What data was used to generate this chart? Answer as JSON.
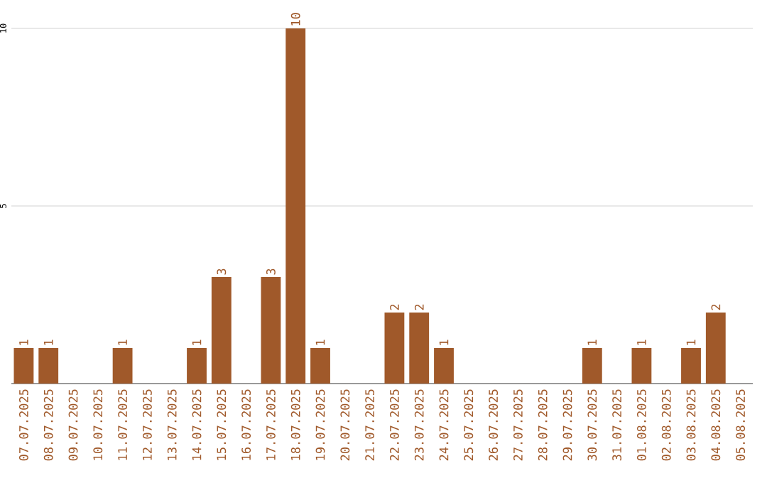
{
  "chart_data": {
    "type": "bar",
    "categories": [
      "07.07.2025",
      "08.07.2025",
      "09.07.2025",
      "10.07.2025",
      "11.07.2025",
      "12.07.2025",
      "13.07.2025",
      "14.07.2025",
      "15.07.2025",
      "16.07.2025",
      "17.07.2025",
      "18.07.2025",
      "19.07.2025",
      "20.07.2025",
      "21.07.2025",
      "22.07.2025",
      "23.07.2025",
      "24.07.2025",
      "25.07.2025",
      "26.07.2025",
      "27.07.2025",
      "28.07.2025",
      "29.07.2025",
      "30.07.2025",
      "31.07.2025",
      "01.08.2025",
      "02.08.2025",
      "03.08.2025",
      "04.08.2025",
      "05.08.2025"
    ],
    "values": [
      1,
      1,
      0,
      0,
      1,
      0,
      0,
      1,
      3,
      0,
      3,
      10,
      1,
      0,
      0,
      2,
      2,
      1,
      0,
      0,
      0,
      0,
      0,
      1,
      0,
      1,
      0,
      1,
      2,
      0
    ],
    "value_labels": [
      "1",
      "1",
      null,
      null,
      "1",
      null,
      null,
      "1",
      "3",
      null,
      "3",
      "10",
      "1",
      null,
      null,
      "2",
      "2",
      "1",
      null,
      null,
      null,
      null,
      null,
      "1",
      null,
      "1",
      null,
      "1",
      "2",
      null
    ],
    "color": "#a0592a",
    "ylim": [
      0,
      10
    ],
    "yticks": [
      5,
      10
    ],
    "grid": "y"
  }
}
